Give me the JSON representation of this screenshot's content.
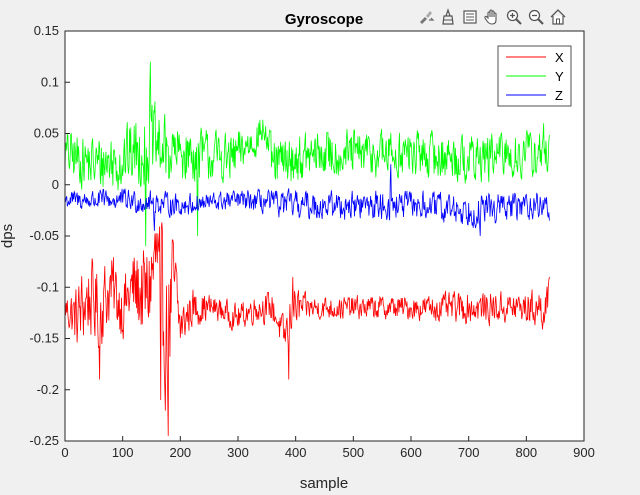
{
  "toolbar": {
    "icons": [
      "brush-export-icon",
      "data-tips-icon",
      "legend-edit-icon",
      "pan-icon",
      "zoom-in-icon",
      "zoom-out-icon",
      "home-icon"
    ]
  },
  "chart_data": {
    "type": "line",
    "title": "Gyroscope",
    "xlabel": "sample",
    "ylabel": "dps",
    "xlim": [
      0,
      900
    ],
    "ylim": [
      -0.25,
      0.15
    ],
    "xticks": [
      0,
      100,
      200,
      300,
      400,
      500,
      600,
      700,
      800,
      900
    ],
    "yticks": [
      -0.25,
      -0.2,
      -0.15,
      -0.1,
      -0.05,
      0,
      0.05,
      0.1,
      0.15
    ],
    "ytick_labels": [
      "-0.25",
      "-0.2",
      "-0.15",
      "-0.1",
      "-0.05",
      "0",
      "0.05",
      "0.1",
      "0.15"
    ],
    "grid": false,
    "legend_position": "top-right",
    "num_samples": 841,
    "series": [
      {
        "name": "X",
        "color": "#ff0000",
        "anchors": [
          [
            0,
            -0.12
          ],
          [
            20,
            -0.13
          ],
          [
            40,
            -0.11
          ],
          [
            60,
            -0.12
          ],
          [
            80,
            -0.1
          ],
          [
            100,
            -0.12
          ],
          [
            120,
            -0.1
          ],
          [
            140,
            -0.11
          ],
          [
            160,
            -0.07
          ],
          [
            175,
            -0.15
          ],
          [
            190,
            -0.1
          ],
          [
            200,
            -0.14
          ],
          [
            220,
            -0.12
          ],
          [
            260,
            -0.12
          ],
          [
            300,
            -0.13
          ],
          [
            330,
            -0.12
          ],
          [
            360,
            -0.12
          ],
          [
            380,
            -0.15
          ],
          [
            395,
            -0.12
          ],
          [
            420,
            -0.12
          ],
          [
            500,
            -0.12
          ],
          [
            600,
            -0.12
          ],
          [
            700,
            -0.12
          ],
          [
            800,
            -0.12
          ],
          [
            840,
            -0.12
          ]
        ],
        "amplitude": [
          [
            0,
            0.02
          ],
          [
            30,
            0.05
          ],
          [
            60,
            0.05
          ],
          [
            100,
            0.04
          ],
          [
            150,
            0.07
          ],
          [
            185,
            0.09
          ],
          [
            200,
            0.03
          ],
          [
            260,
            0.015
          ],
          [
            370,
            0.02
          ],
          [
            395,
            0.03
          ],
          [
            420,
            0.015
          ],
          [
            600,
            0.015
          ],
          [
            700,
            0.02
          ],
          [
            800,
            0.02
          ],
          [
            840,
            0.03
          ]
        ],
        "extremes": [
          [
            179,
            -0.245
          ],
          [
            165,
            -0.04
          ],
          [
            166,
            -0.21
          ],
          [
            388,
            -0.19
          ],
          [
            395,
            -0.09
          ],
          [
            60,
            -0.19
          ],
          [
            840,
            -0.09
          ]
        ]
      },
      {
        "name": "Y",
        "color": "#00ff00",
        "anchors": [
          [
            0,
            0.03
          ],
          [
            50,
            0.02
          ],
          [
            100,
            0.025
          ],
          [
            150,
            0.04
          ],
          [
            180,
            0.03
          ],
          [
            230,
            0.03
          ],
          [
            290,
            0.025
          ],
          [
            330,
            0.045
          ],
          [
            345,
            0.055
          ],
          [
            360,
            0.02
          ],
          [
            450,
            0.03
          ],
          [
            600,
            0.03
          ],
          [
            700,
            0.025
          ],
          [
            800,
            0.03
          ],
          [
            840,
            0.03
          ]
        ],
        "amplitude": [
          [
            0,
            0.03
          ],
          [
            100,
            0.04
          ],
          [
            150,
            0.05
          ],
          [
            200,
            0.035
          ],
          [
            300,
            0.03
          ],
          [
            345,
            0.02
          ],
          [
            360,
            0.03
          ],
          [
            840,
            0.03
          ]
        ],
        "extremes": [
          [
            148,
            0.12
          ],
          [
            140,
            -0.06
          ],
          [
            230,
            -0.05
          ],
          [
            830,
            0.06
          ]
        ]
      },
      {
        "name": "Z",
        "color": "#0000ff",
        "anchors": [
          [
            0,
            -0.015
          ],
          [
            100,
            -0.015
          ],
          [
            200,
            -0.02
          ],
          [
            300,
            -0.015
          ],
          [
            400,
            -0.02
          ],
          [
            500,
            -0.02
          ],
          [
            600,
            -0.02
          ],
          [
            700,
            -0.025
          ],
          [
            800,
            -0.02
          ],
          [
            840,
            -0.02
          ]
        ],
        "amplitude": [
          [
            0,
            0.012
          ],
          [
            150,
            0.015
          ],
          [
            300,
            0.012
          ],
          [
            400,
            0.018
          ],
          [
            600,
            0.018
          ],
          [
            720,
            0.02
          ],
          [
            840,
            0.015
          ]
        ],
        "extremes": [
          [
            155,
            -0.045
          ],
          [
            720,
            -0.05
          ],
          [
            565,
            0.02
          ],
          [
            840,
            -0.035
          ]
        ]
      }
    ]
  }
}
